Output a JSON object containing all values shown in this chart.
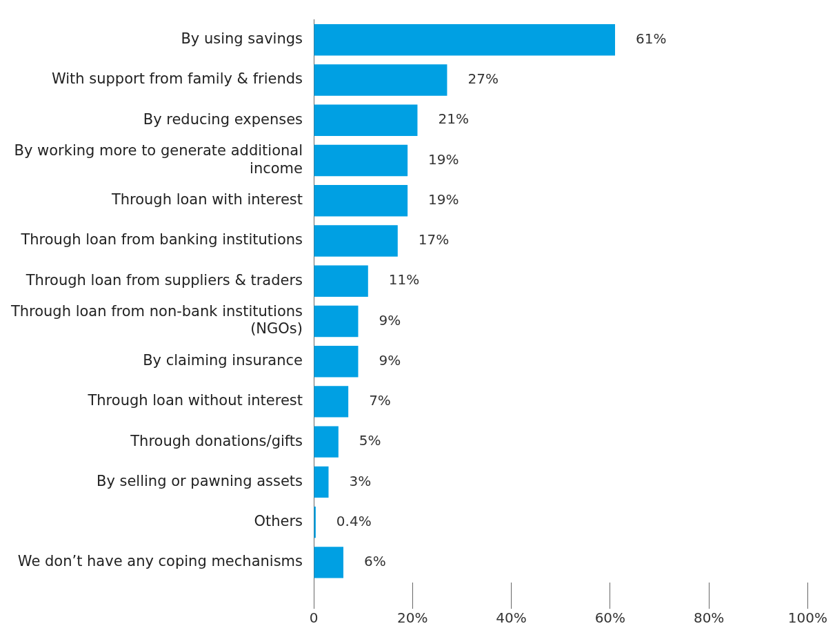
{
  "chart_data": {
    "type": "bar",
    "orientation": "horizontal",
    "categories": [
      "By using savings",
      "With support from family & friends",
      "By reducing expenses",
      "By working more to generate additional income",
      "Through loan with interest",
      "Through loan from banking institutions",
      "Through loan from suppliers & traders",
      "Through loan from non-bank institutions (NGOs)",
      "By claiming insurance",
      "Through loan without interest",
      "Through donations/gifts",
      "By selling or pawning assets",
      "Others",
      "We don’t have any coping mechanisms"
    ],
    "values": [
      61,
      27,
      21,
      19,
      19,
      17,
      11,
      9,
      9,
      7,
      5,
      3,
      0.4,
      6
    ],
    "value_labels": [
      "61%",
      "27%",
      "21%",
      "19%",
      "19%",
      "17%",
      "11%",
      "9%",
      "9%",
      "7%",
      "5%",
      "3%",
      "0.4%",
      "6%"
    ],
    "color": "#00a0e3",
    "xlim": [
      0,
      100
    ],
    "xticks": [
      {
        "value": 0,
        "label": "0"
      },
      {
        "value": 20,
        "label": "20%"
      },
      {
        "value": 40,
        "label": "40%"
      },
      {
        "value": 60,
        "label": "60%"
      },
      {
        "value": 80,
        "label": "80%"
      },
      {
        "value": 100,
        "label": "100%"
      }
    ],
    "legend": false
  }
}
